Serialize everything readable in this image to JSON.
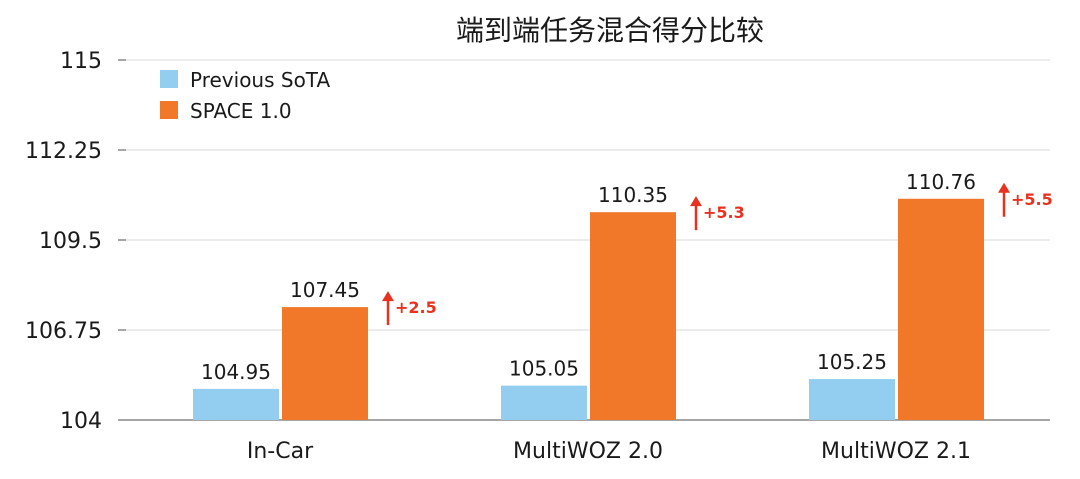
{
  "chart_data": {
    "type": "bar",
    "title": "端到端任务混合得分比较",
    "xlabel": "",
    "ylabel": "",
    "ylim": [
      104,
      115
    ],
    "yticks": [
      "115",
      "112.25",
      "109.5",
      "106.75",
      "104"
    ],
    "yticks_values": [
      115,
      112.25,
      109.5,
      106.75,
      104
    ],
    "grid": true,
    "legend_position": "top-left",
    "categories": [
      "In-Car",
      "MultiWOZ 2.0",
      "MultiWOZ 2.1"
    ],
    "series": [
      {
        "name": "Previous SoTA",
        "color": "#93cdf0",
        "values": [
          104.95,
          105.05,
          105.25
        ],
        "labels": [
          "104.95",
          "105.05",
          "105.25"
        ]
      },
      {
        "name": "SPACE 1.0",
        "color": "#f07828",
        "values": [
          107.45,
          110.35,
          110.76
        ],
        "labels": [
          "107.45",
          "110.35",
          "110.76"
        ]
      }
    ],
    "annotations": [
      "+2.5",
      "+5.3",
      "+5.5"
    ],
    "annotation_color": "#e8321f"
  }
}
